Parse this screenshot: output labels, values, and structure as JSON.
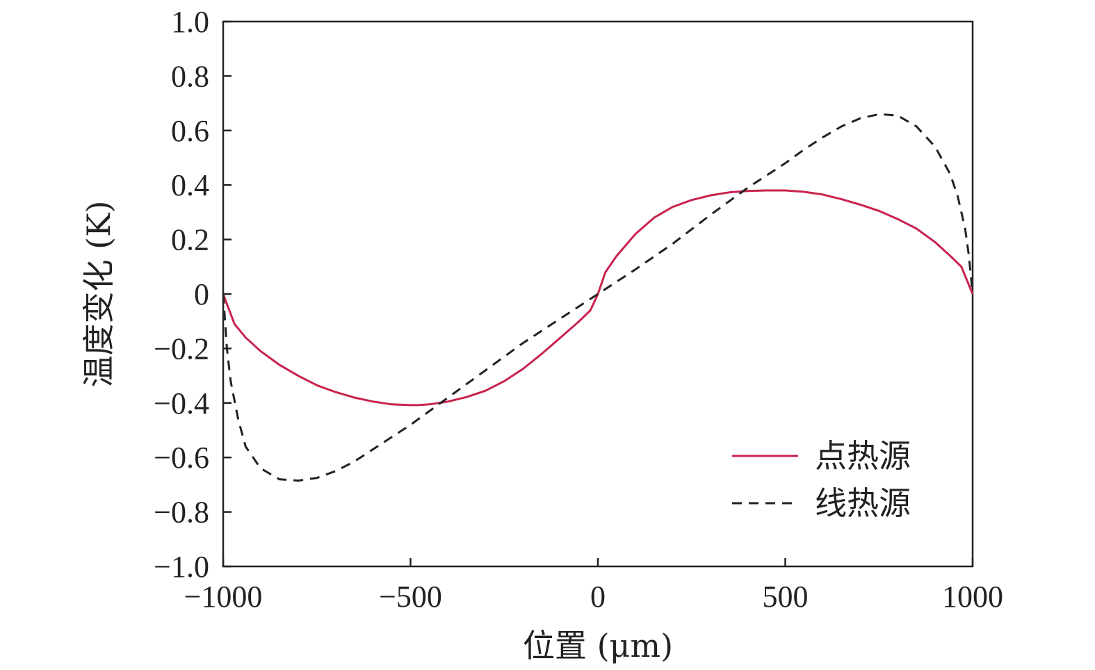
{
  "chart_data": {
    "type": "line",
    "title": "",
    "xlabel": "位置 (μm)",
    "ylabel": "温度变化 (K)",
    "xlim": [
      -1000,
      1000
    ],
    "ylim": [
      -1.0,
      1.0
    ],
    "xticks": [
      -1000,
      -500,
      0,
      500,
      1000
    ],
    "xtick_labels": [
      "−1000",
      "−500",
      "0",
      "500",
      "1000"
    ],
    "yticks": [
      1.0,
      0.8,
      0.6,
      0.4,
      0.2,
      0,
      -0.2,
      -0.4,
      -0.6,
      -0.8,
      -1.0
    ],
    "ytick_labels": [
      "1.0",
      "0.8",
      "0.6",
      "0.4",
      "0.2",
      "0",
      "−0.2",
      "−0.4",
      "−0.6",
      "−0.8",
      "−1.0"
    ],
    "grid": false,
    "legend_position": "bottom-right",
    "series": [
      {
        "name": "点热源",
        "color": "#c8234e",
        "style": "solid",
        "x": [
          -1000,
          -970,
          -940,
          -900,
          -850,
          -800,
          -750,
          -700,
          -650,
          -600,
          -550,
          -500,
          -480,
          -450,
          -400,
          -350,
          -300,
          -250,
          -200,
          -150,
          -100,
          -50,
          -20,
          0,
          20,
          50,
          100,
          150,
          200,
          250,
          300,
          350,
          400,
          450,
          500,
          550,
          600,
          650,
          700,
          750,
          800,
          850,
          900,
          940,
          970,
          1000
        ],
        "y": [
          0.0,
          -0.11,
          -0.16,
          -0.21,
          -0.26,
          -0.3,
          -0.335,
          -0.36,
          -0.38,
          -0.395,
          -0.405,
          -0.408,
          -0.408,
          -0.405,
          -0.395,
          -0.378,
          -0.355,
          -0.32,
          -0.275,
          -0.22,
          -0.16,
          -0.1,
          -0.06,
          0.0,
          0.08,
          0.14,
          0.22,
          0.28,
          0.32,
          0.345,
          0.362,
          0.373,
          0.378,
          0.38,
          0.38,
          0.375,
          0.365,
          0.348,
          0.328,
          0.305,
          0.275,
          0.24,
          0.19,
          0.14,
          0.1,
          0.0
        ]
      },
      {
        "name": "线热源",
        "color": "#222222",
        "style": "dashed",
        "x": [
          -1000,
          -990,
          -980,
          -960,
          -940,
          -900,
          -850,
          -800,
          -750,
          -700,
          -650,
          -600,
          -550,
          -500,
          -400,
          -300,
          -200,
          -100,
          0,
          100,
          200,
          300,
          400,
          500,
          550,
          600,
          650,
          700,
          750,
          800,
          850,
          900,
          940,
          960,
          980,
          990,
          1000
        ],
        "y": [
          0.0,
          -0.2,
          -0.32,
          -0.46,
          -0.56,
          -0.64,
          -0.68,
          -0.685,
          -0.675,
          -0.65,
          -0.615,
          -0.57,
          -0.525,
          -0.48,
          -0.38,
          -0.28,
          -0.18,
          -0.09,
          0.0,
          0.09,
          0.185,
          0.29,
          0.39,
          0.48,
          0.53,
          0.575,
          0.615,
          0.645,
          0.66,
          0.655,
          0.615,
          0.54,
          0.44,
          0.36,
          0.24,
          0.14,
          0.0
        ]
      }
    ]
  }
}
